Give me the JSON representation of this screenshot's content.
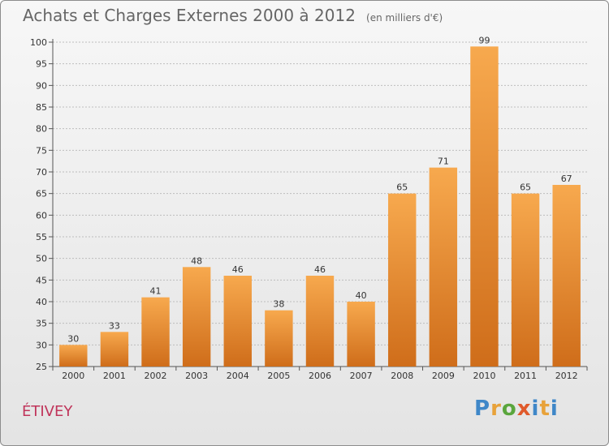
{
  "header": {
    "title": "Achats et Charges Externes 2000 à 2012",
    "unit": "(en milliers d'€)"
  },
  "commune": "ÉTIVEY",
  "logo": {
    "text": "Proxiti"
  },
  "colors": {
    "bar_top": "#f7a94e",
    "bar_bottom": "#cf6d1a",
    "grid": "#bdbdbd",
    "title": "#666666",
    "commune": "#c0345a"
  },
  "chart_data": {
    "type": "bar",
    "title": "Achats et Charges Externes 2000 à 2012",
    "subtitle": "(en milliers d'€)",
    "xlabel": "",
    "ylabel": "",
    "categories": [
      "2000",
      "2001",
      "2002",
      "2003",
      "2004",
      "2005",
      "2006",
      "2007",
      "2008",
      "2009",
      "2010",
      "2011",
      "2012"
    ],
    "values": [
      30,
      33,
      41,
      48,
      46,
      38,
      46,
      40,
      65,
      71,
      99,
      65,
      67
    ],
    "ylim": [
      25,
      100
    ],
    "yticks": [
      25,
      30,
      35,
      40,
      45,
      50,
      55,
      60,
      65,
      70,
      75,
      80,
      85,
      90,
      95,
      100
    ],
    "grid": true,
    "legend": "none"
  }
}
